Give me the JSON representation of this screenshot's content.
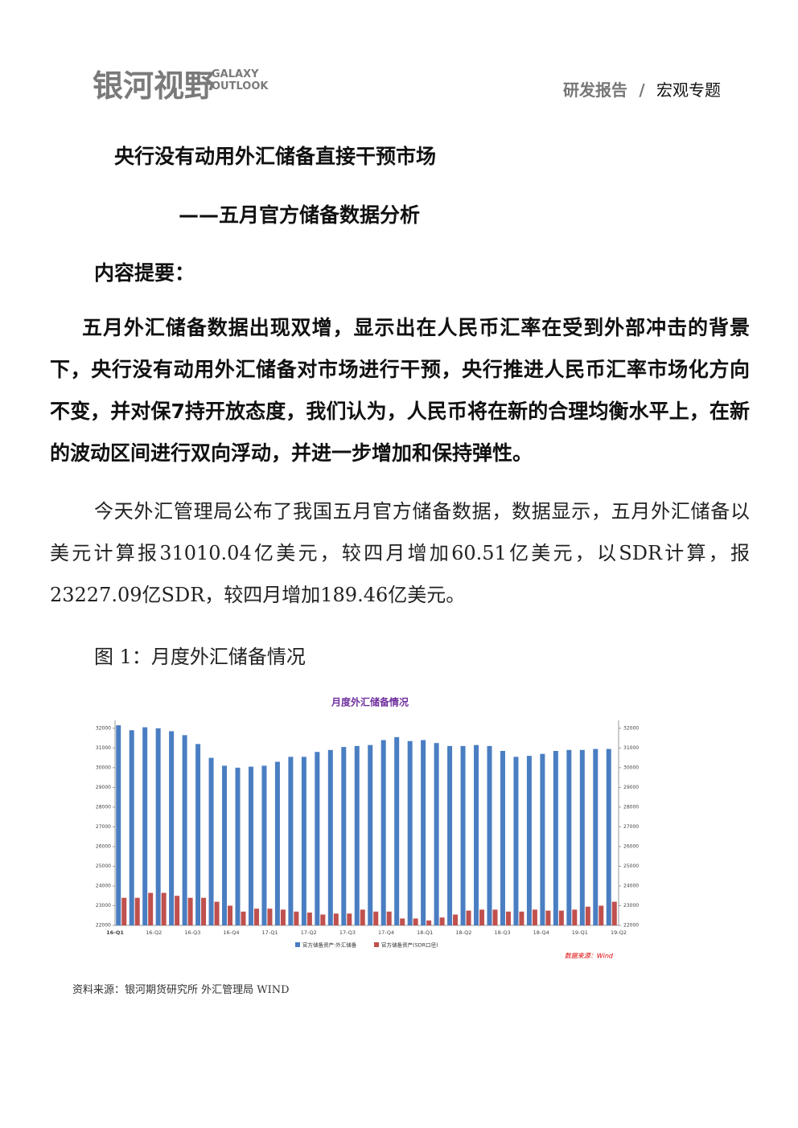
{
  "header": {
    "logo_cn": "银河视野",
    "logo_en": [
      "GALAXY",
      "OUTLOOK"
    ],
    "section": "研发报告",
    "separator": "/",
    "topic": "宏观专题"
  },
  "title": "央行没有动用外汇储备直接干预市场",
  "subtitle": "——五月官方储备数据分析",
  "summary_heading": "内容提要：",
  "summary": "五月外汇储备数据出现双增，显示出在人民币汇率在受到外部冲击的背景下，央行没有动用外汇储备对市场进行干预，央行推进人民币汇率市场化方向不变，并对保7持开放态度，我们认为，人民币将在新的合理均衡水平上，在新的波动区间进行双向浮动，并进一步增加和保持弹性。",
  "body": "今天外汇管理局公布了我国五月官方储备数据，数据显示，五月外汇储备以美元计算报31010.04亿美元，较四月增加60.51亿美元，以SDR计算，报23227.09亿SDR，较四月增加189.46亿美元。",
  "figure_caption": "图 1：月度外汇储备情况",
  "chart_data": {
    "type": "bar",
    "title": "月度外汇储备情况",
    "x_tick_labels": [
      "16-Q1",
      "16-Q2",
      "16-Q3",
      "16-Q4",
      "17-Q1",
      "17-Q2",
      "17-Q3",
      "17-Q4",
      "18-Q1",
      "18-Q2",
      "18-Q3",
      "18-Q4",
      "19-Q1",
      "19-Q2"
    ],
    "series": [
      {
        "name": "官方储备资产:外汇储备",
        "color": "#4a7ec2",
        "values": [
          32150,
          31900,
          32050,
          32000,
          31850,
          31650,
          31200,
          30500,
          30100,
          30000,
          30050,
          30100,
          30300,
          30550,
          30550,
          30800,
          30900,
          31050,
          31100,
          31150,
          31400,
          31550,
          31350,
          31400,
          31250,
          31100,
          31100,
          31150,
          31100,
          30850,
          30550,
          30600,
          30700,
          30850,
          30900,
          30900,
          30950,
          30950
        ]
      },
      {
        "name": "官方储备资产(SDR口径)",
        "color": "#c0504d",
        "axis": "y2",
        "values": [
          23400,
          23400,
          23650,
          23650,
          23500,
          23400,
          23400,
          23200,
          23000,
          22700,
          22850,
          22850,
          22800,
          22700,
          22650,
          22550,
          22600,
          22600,
          22800,
          22700,
          22700,
          22350,
          22350,
          22250,
          22400,
          22550,
          22750,
          22800,
          22800,
          22700,
          22700,
          22800,
          22750,
          22750,
          22800,
          22950,
          23000,
          23200
        ]
      }
    ],
    "ylim": [
      22000,
      32400
    ],
    "yticks": [
      22000,
      23000,
      24000,
      25000,
      26000,
      27000,
      28000,
      29000,
      30000,
      31000,
      32000
    ],
    "y2lim": [
      22000,
      32400
    ],
    "y2ticks": [
      22000,
      23000,
      24000,
      25000,
      26000,
      27000,
      28000,
      29000,
      30000,
      31000,
      32000
    ],
    "source_note": "数据来源：Wind"
  },
  "source": "资料来源：银河期货研究所 外汇管理局 WIND"
}
